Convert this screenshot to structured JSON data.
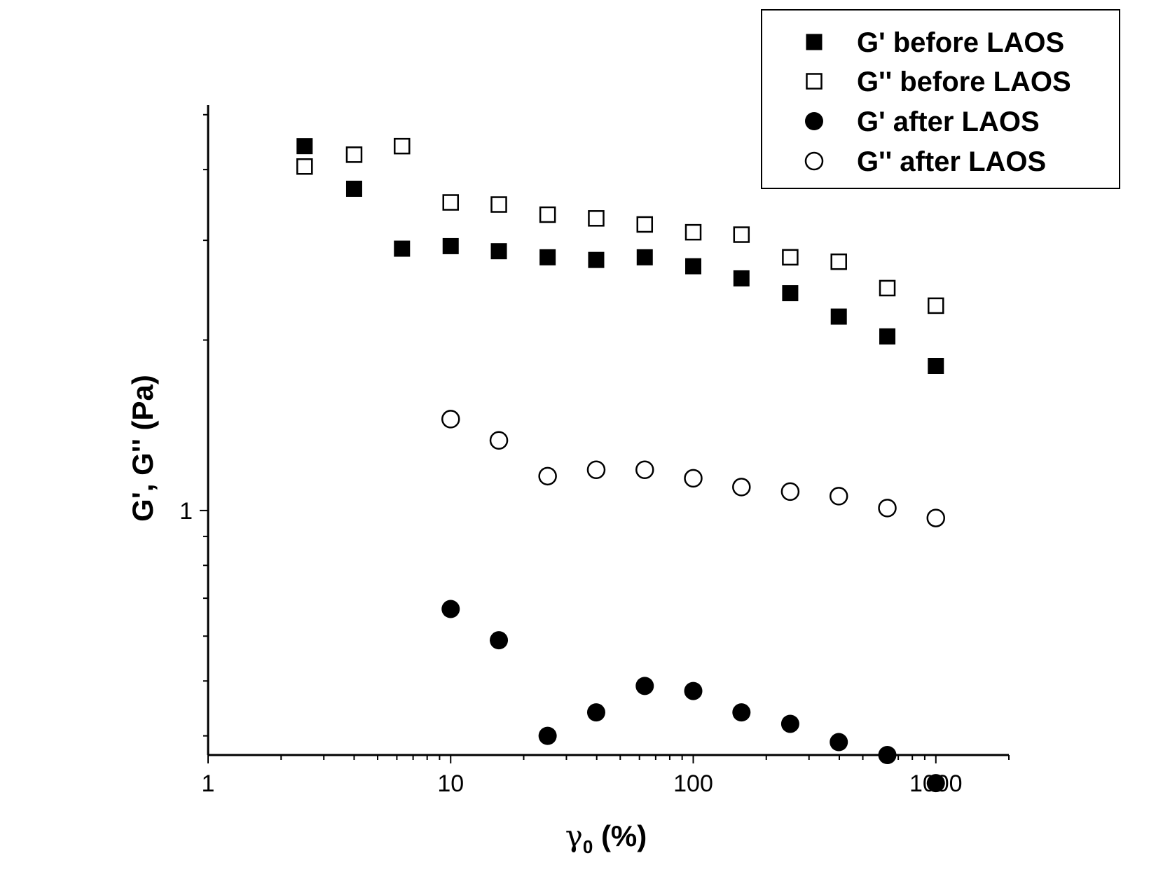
{
  "chart_data": {
    "type": "scatter",
    "title": "",
    "xlabel": "γ0 (%)",
    "xlabel_parts": {
      "symbol": "γ",
      "subscript": "0",
      "rest": " (%)"
    },
    "ylabel": "G', G'' (Pa)",
    "x_scale": "log",
    "y_scale": "log",
    "xlim": [
      1,
      2000
    ],
    "ylim": [
      0.37,
      5.2
    ],
    "x_tick_labels": [
      "1",
      "10",
      "100",
      "1000"
    ],
    "y_tick_labels": [
      "1"
    ],
    "grid": false,
    "legend_position": "top-right",
    "series": [
      {
        "name": "G' before LAOS",
        "marker": "square-filled",
        "x": [
          2.5,
          4,
          6.3,
          10,
          15.8,
          25.1,
          39.8,
          63.1,
          100,
          158,
          251,
          398,
          631,
          1000
        ],
        "y": [
          4.4,
          3.7,
          2.9,
          2.93,
          2.87,
          2.8,
          2.77,
          2.8,
          2.7,
          2.57,
          2.42,
          2.2,
          2.03,
          1.8
        ]
      },
      {
        "name": "G'' before LAOS",
        "marker": "square-open",
        "x": [
          2.5,
          4,
          6.3,
          10,
          15.8,
          25.1,
          39.8,
          63.1,
          100,
          158,
          251,
          398,
          631,
          1000
        ],
        "y": [
          4.05,
          4.25,
          4.4,
          3.5,
          3.47,
          3.33,
          3.28,
          3.2,
          3.1,
          3.07,
          2.8,
          2.75,
          2.47,
          2.3
        ]
      },
      {
        "name": "G' after LAOS",
        "marker": "circle-filled",
        "x": [
          10,
          15.8,
          25.1,
          39.8,
          63.1,
          100,
          158,
          251,
          398,
          631,
          1000
        ],
        "y": [
          0.67,
          0.59,
          0.4,
          0.44,
          0.49,
          0.48,
          0.44,
          0.42,
          0.39,
          0.37,
          0.33
        ]
      },
      {
        "name": "G'' after LAOS",
        "marker": "circle-open",
        "x": [
          10,
          15.8,
          25.1,
          39.8,
          63.1,
          100,
          158,
          251,
          398,
          631,
          1000
        ],
        "y": [
          1.45,
          1.33,
          1.15,
          1.18,
          1.18,
          1.14,
          1.1,
          1.08,
          1.06,
          1.01,
          0.97
        ]
      }
    ]
  }
}
